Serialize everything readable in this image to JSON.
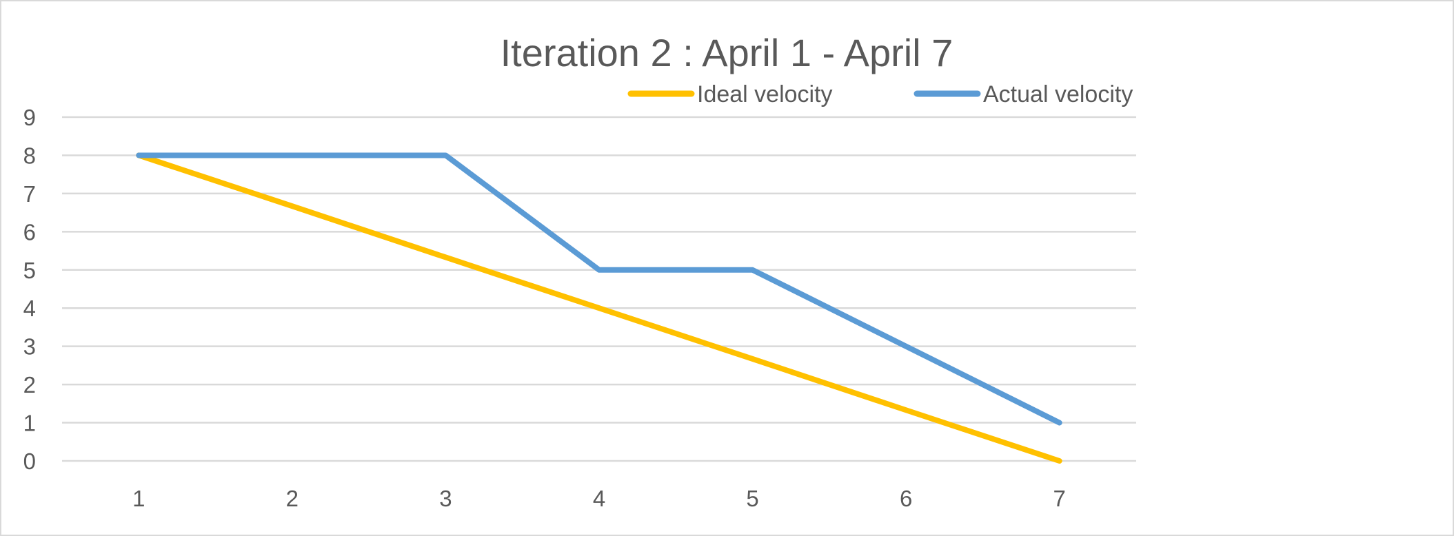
{
  "chart_data": {
    "type": "line",
    "title": "Iteration 2 : April 1 - April 7",
    "xlabel": "",
    "ylabel": "",
    "x": [
      1,
      2,
      3,
      4,
      5,
      6,
      7
    ],
    "ylim": [
      0,
      9
    ],
    "yticks": [
      0,
      1,
      2,
      3,
      4,
      5,
      6,
      7,
      8,
      9
    ],
    "grid": true,
    "legend_position": "top-right",
    "series": [
      {
        "name": "Ideal velocity",
        "color": "#ffc000",
        "values": [
          8,
          6.67,
          5.33,
          4,
          2.67,
          1.33,
          0
        ]
      },
      {
        "name": "Actual velocity",
        "color": "#5b9bd5",
        "values": [
          8,
          8,
          8,
          5,
          5,
          3,
          1
        ]
      }
    ]
  }
}
